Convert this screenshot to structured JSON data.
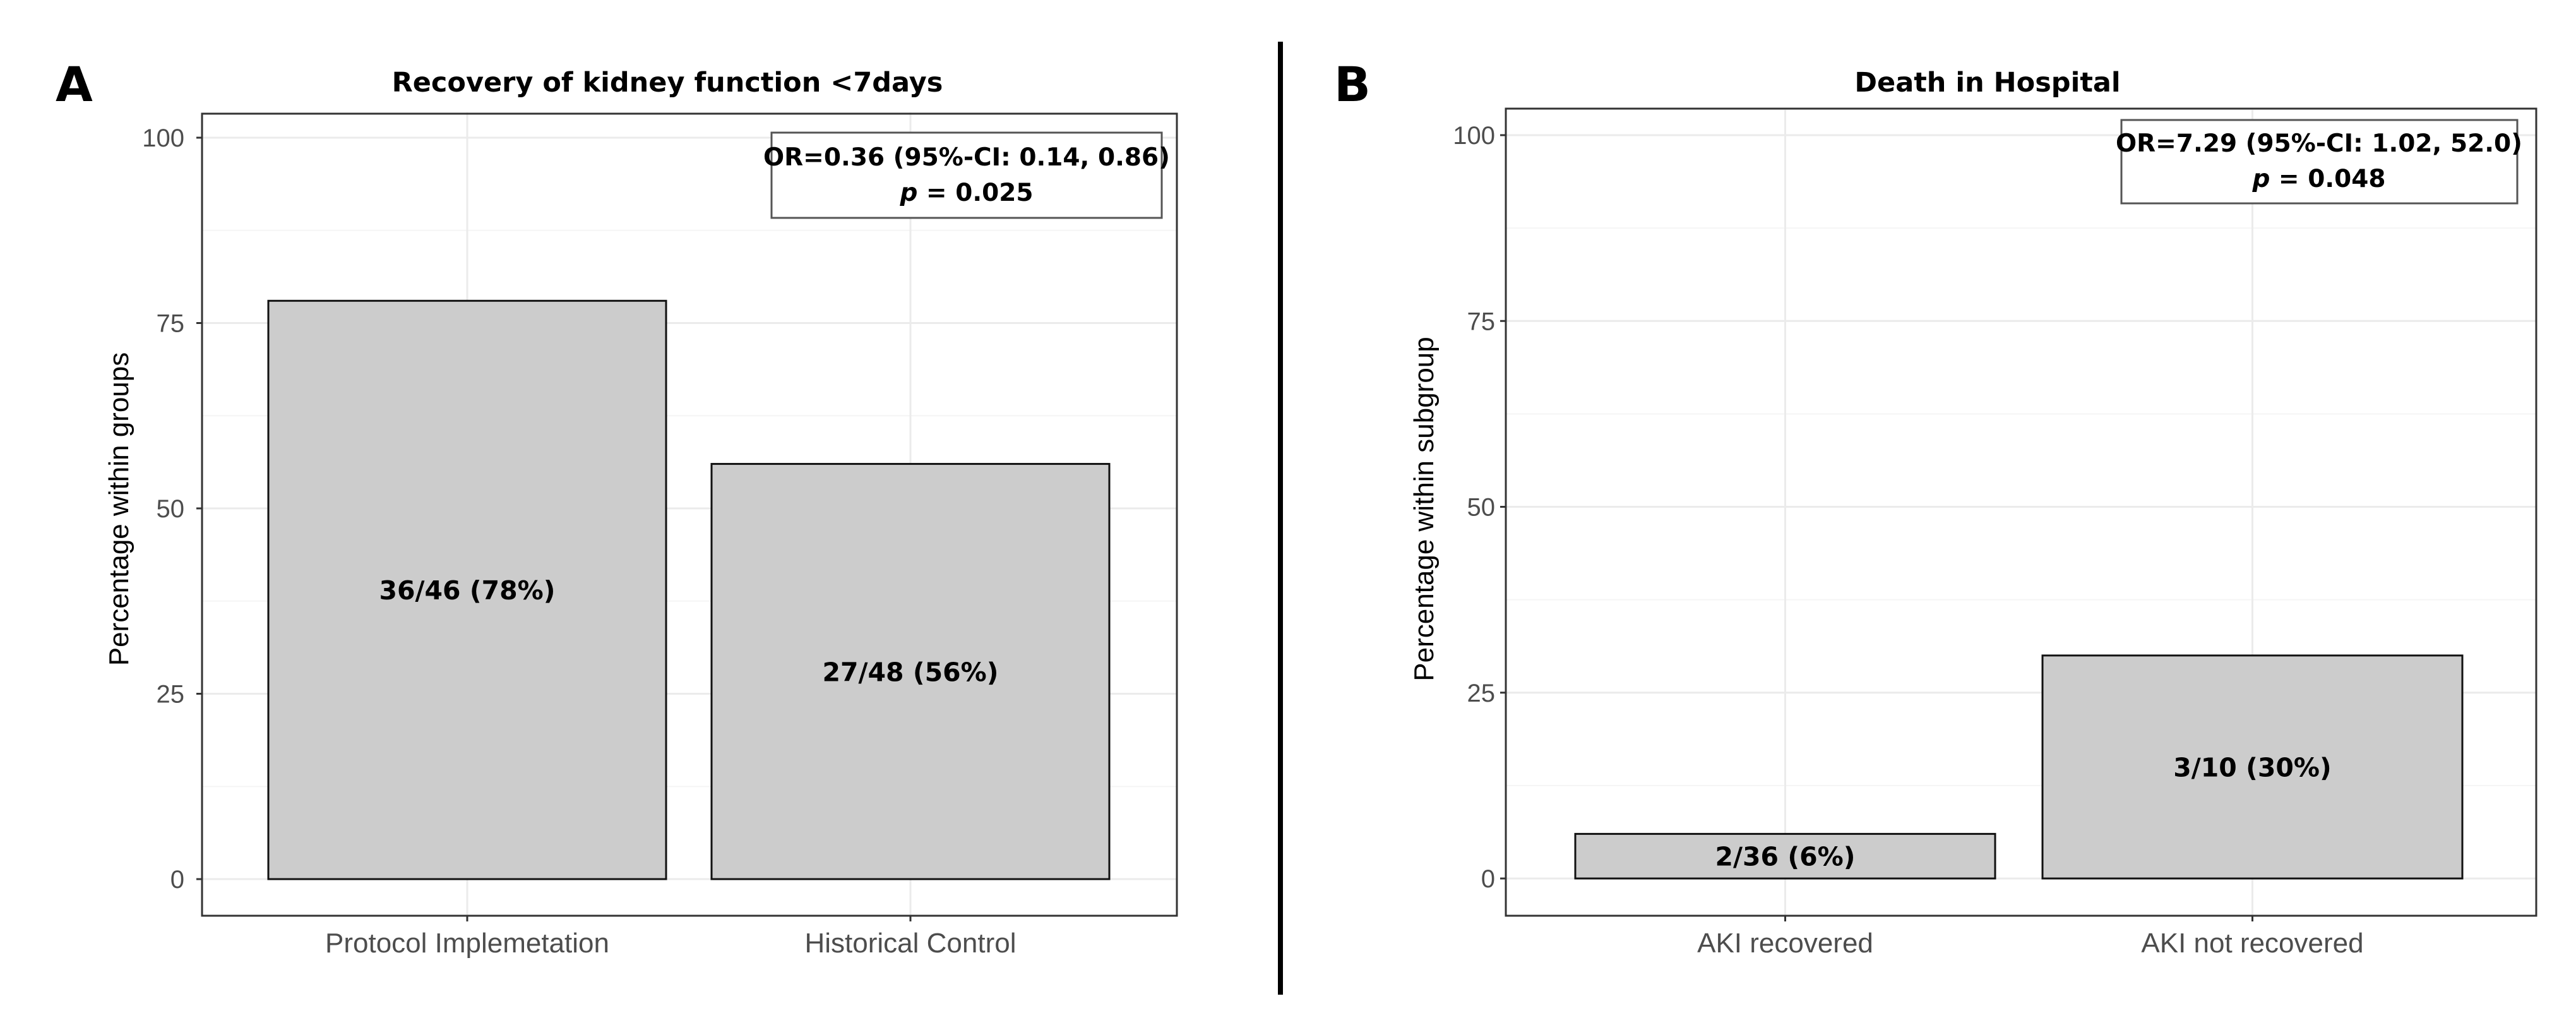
{
  "chart_data": [
    {
      "type": "bar",
      "panel_label": "A",
      "title": "Recovery of kidney function <7days",
      "xlabel": "",
      "ylabel": "Percentage within groups",
      "ylim": [
        0,
        105
      ],
      "yticks": [
        0,
        25,
        50,
        75,
        100
      ],
      "categories": [
        "Protocol Implemetation",
        "Historical Control"
      ],
      "values": [
        78,
        56
      ],
      "bar_labels": [
        "36/46 (78%)",
        "27/48 (56%)"
      ],
      "annotation": {
        "line1": "OR=0.36 (95%-CI: 0.14, 0.86)",
        "p_symbol": "p",
        "p_value": " = 0.025"
      },
      "bar_color": "#cccccc",
      "grid": true
    },
    {
      "type": "bar",
      "panel_label": "B",
      "title": "Death in Hospital",
      "xlabel": "",
      "ylabel": "Percentage within subgroup",
      "ylim": [
        0,
        105
      ],
      "yticks": [
        0,
        25,
        50,
        75,
        100
      ],
      "categories": [
        "AKI recovered",
        "AKI not recovered"
      ],
      "values": [
        6,
        30
      ],
      "bar_labels": [
        "2/36 (6%)",
        "3/10 (30%)"
      ],
      "annotation": {
        "line1": "OR=7.29 (95%-CI: 1.02, 52.0)",
        "p_symbol": "p",
        "p_value": " = 0.048"
      },
      "bar_color": "#cccccc",
      "grid": true
    }
  ]
}
